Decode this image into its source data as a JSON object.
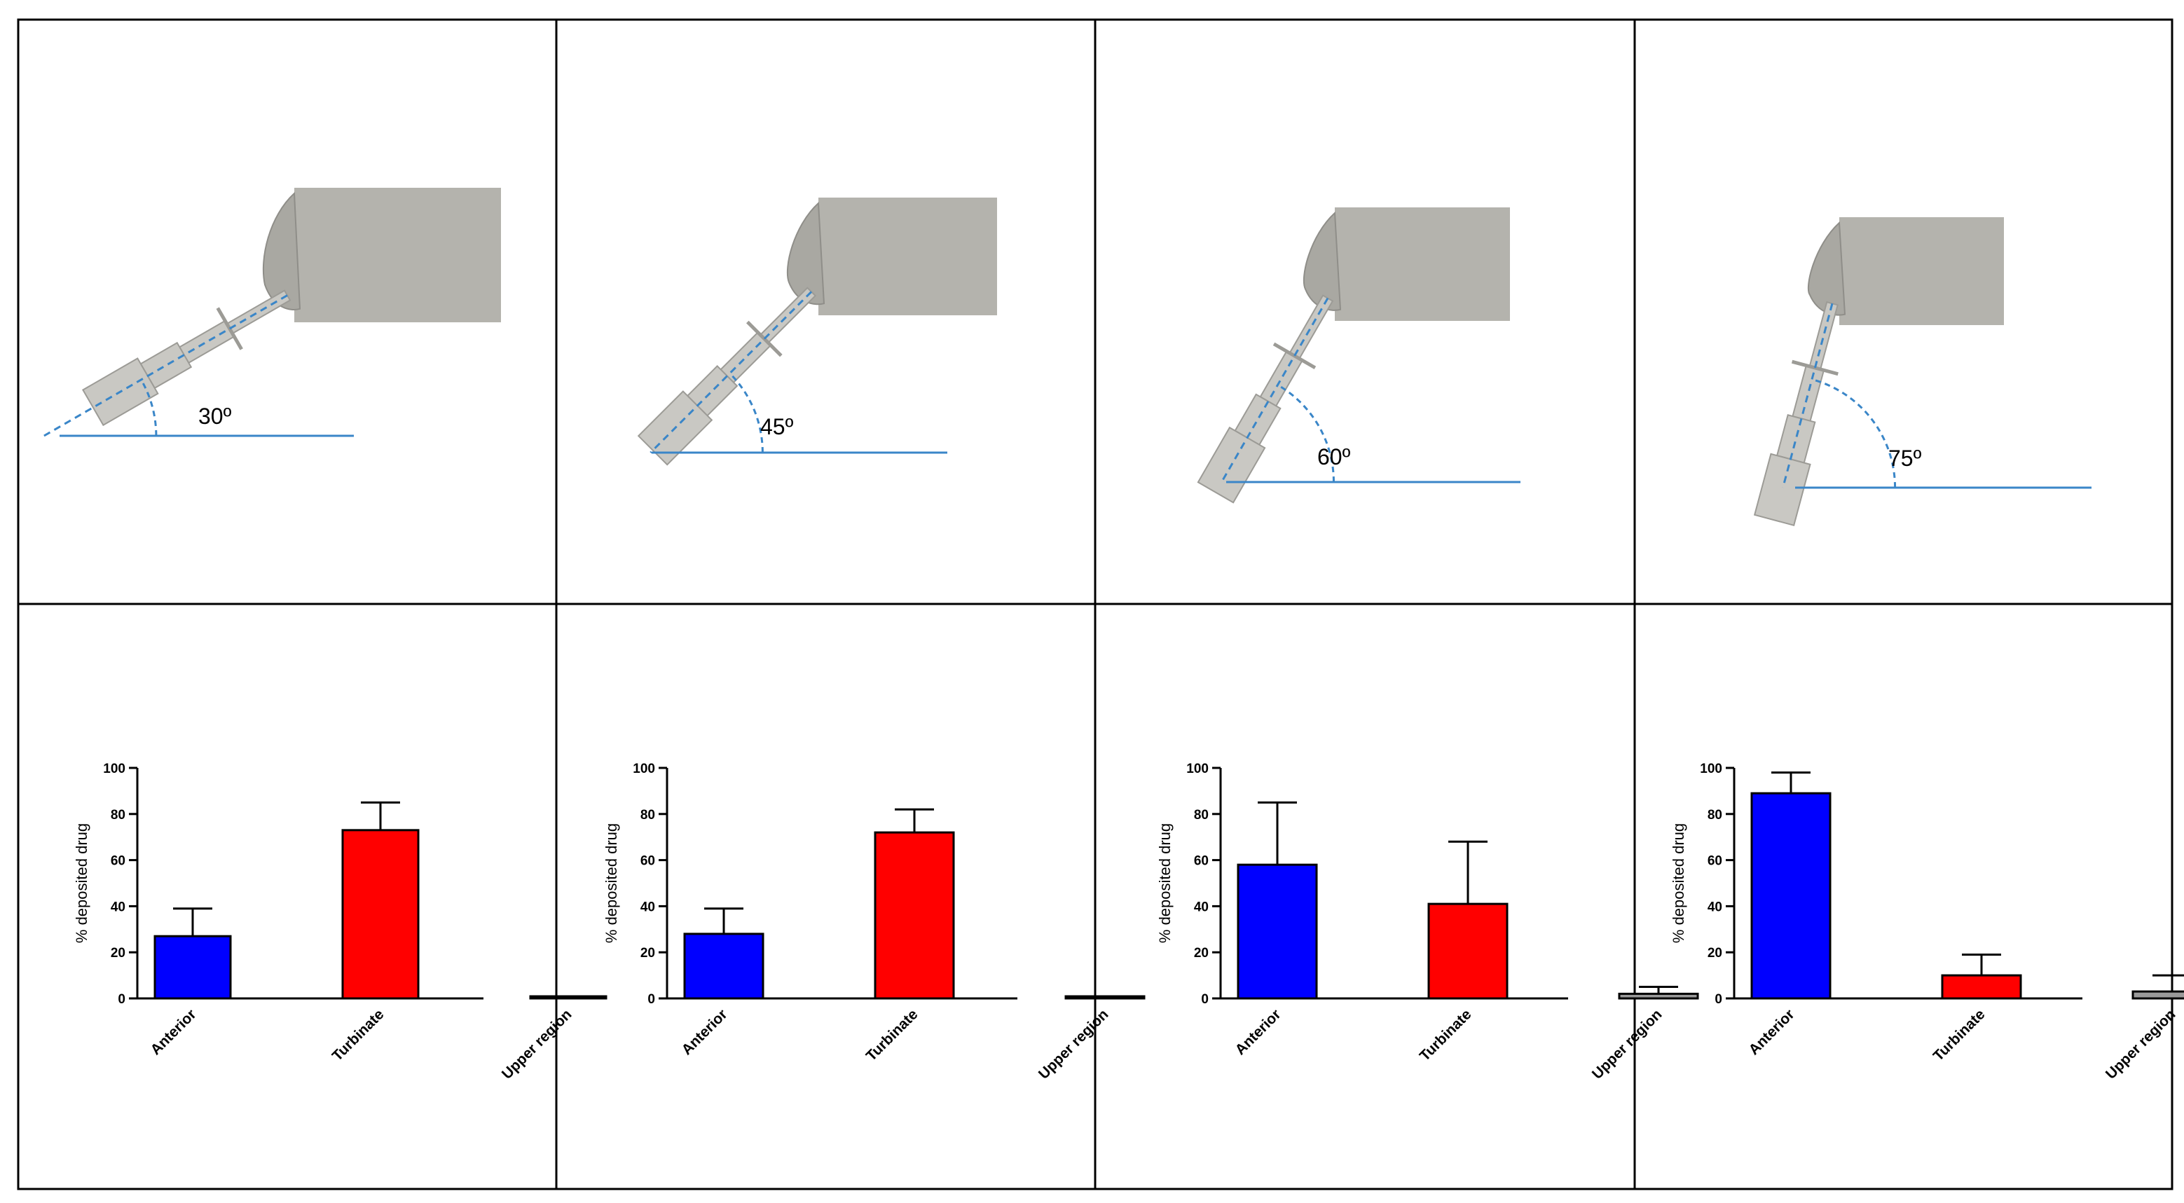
{
  "colors": {
    "anterior": "#0000ff",
    "turbinate": "#ff0000",
    "upper_region": "#9a9a9a",
    "reference_line": "#3a86c8",
    "device": "#c9c8c3",
    "head_block": "#b4b3ad"
  },
  "panels": [
    {
      "angle_label": "30º",
      "angle_deg": 30
    },
    {
      "angle_label": "45º",
      "angle_deg": 45
    },
    {
      "angle_label": "60º",
      "angle_deg": 60
    },
    {
      "angle_label": "75º",
      "angle_deg": 75
    }
  ],
  "chart_data": [
    {
      "type": "bar",
      "ylabel": "% deposited drug",
      "ylim": [
        0,
        100
      ],
      "yticks": [
        "0",
        "20",
        "40",
        "60",
        "80",
        "100"
      ],
      "categories": [
        "Anterior",
        "Turbinate",
        "Upper region"
      ],
      "values": [
        27,
        73,
        0
      ],
      "error_upper": [
        39,
        85,
        0.5
      ]
    },
    {
      "type": "bar",
      "ylabel": "% deposited drug",
      "ylim": [
        0,
        100
      ],
      "yticks": [
        "0",
        "20",
        "40",
        "60",
        "80",
        "100"
      ],
      "categories": [
        "Anterior",
        "Turbinate",
        "Upper region"
      ],
      "values": [
        28,
        72,
        0
      ],
      "error_upper": [
        39,
        82,
        0.5
      ]
    },
    {
      "type": "bar",
      "ylabel": "% deposited drug",
      "ylim": [
        0,
        100
      ],
      "yticks": [
        "0",
        "20",
        "40",
        "60",
        "80",
        "100"
      ],
      "categories": [
        "Anterior",
        "Turbinate",
        "Upper region"
      ],
      "values": [
        58,
        41,
        2
      ],
      "error_upper": [
        85,
        68,
        5
      ]
    },
    {
      "type": "bar",
      "ylabel": "% deposited drug",
      "ylim": [
        0,
        100
      ],
      "yticks": [
        "0",
        "20",
        "40",
        "60",
        "80",
        "100"
      ],
      "categories": [
        "Anterior",
        "Turbinate",
        "Upper region"
      ],
      "values": [
        89,
        10,
        3
      ],
      "error_upper": [
        98,
        19,
        10
      ]
    }
  ]
}
